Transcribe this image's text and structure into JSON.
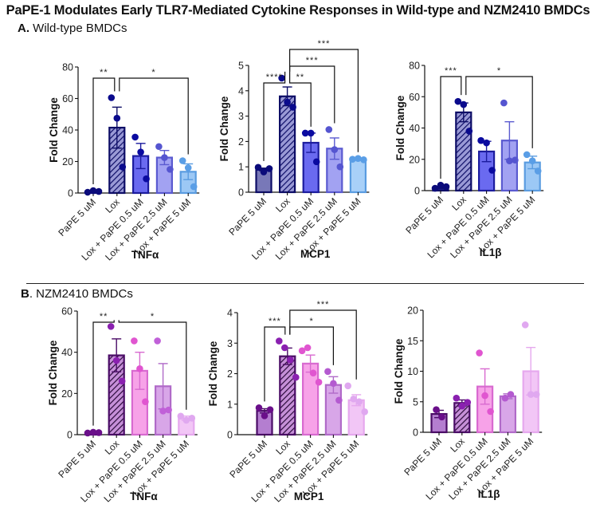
{
  "figure": {
    "title": "PaPE-1 Modulates Early TLR7-Mediated Cytokine Responses in Wild-type and NZM2410 BMDCs",
    "sections": [
      {
        "letter": "A.",
        "name": "Wild-type BMDCs"
      },
      {
        "letter": "B",
        "name": ". NZM2410 BMDCs"
      }
    ]
  },
  "chart_data": [
    {
      "type": "bar",
      "section": "A",
      "title": "TNFα",
      "xlabel": "TNFα",
      "ylabel": "Fold Change",
      "ylim": [
        0,
        80
      ],
      "yticks": [
        0,
        20,
        40,
        60,
        80
      ],
      "categories": [
        "PaPE 5 uM",
        "Lox",
        "Lox + PaPE 0.5 uM",
        "Lox + PaPE 2.5 uM",
        "Lox + PaPE 5 uM"
      ],
      "values": [
        1,
        41.5,
        23.5,
        22.5,
        13.5
      ],
      "sem": [
        0.5,
        13,
        8,
        4.5,
        5
      ],
      "points": [
        [
          0.5,
          1.5,
          1
        ],
        [
          60.5,
          47.5,
          16.5
        ],
        [
          35.5,
          26,
          9
        ],
        [
          29.5,
          22.5,
          15
        ],
        [
          20.5,
          16,
          4
        ]
      ],
      "bar_colors": [
        "#1a1a8c",
        "#9a9ad6",
        "#6a6af0",
        "#a2a2f2",
        "#9cc8f5"
      ],
      "edge_colors": [
        "#0d0d66",
        "#0d0d66",
        "#1c1c9e",
        "#5a5ad0",
        "#5a9ce0"
      ],
      "point_colors": [
        "#0a0a7a",
        "#0a0a8c",
        "#0a0aa0",
        "#5555d0",
        "#5a9ee6"
      ],
      "hatched": [
        false,
        true,
        false,
        false,
        false
      ],
      "significance": [
        {
          "from": 0,
          "to": 1,
          "label": "**",
          "level": 0
        },
        {
          "from": 1,
          "to": 4,
          "label": "*",
          "level": 0
        }
      ]
    },
    {
      "type": "bar",
      "section": "A",
      "title": "MCP1",
      "xlabel": "MCP1",
      "ylabel": "Fold Change",
      "ylim": [
        0,
        5
      ],
      "yticks": [
        0,
        1,
        2,
        3,
        4,
        5
      ],
      "categories": [
        "PaPE 5 uM",
        "Lox",
        "Lox + PaPE 0.5 uM",
        "Lox + PaPE 2.5 uM",
        "Lox + PaPE 5 uM"
      ],
      "values": [
        0.9,
        3.78,
        1.95,
        1.72,
        1.3
      ],
      "sem": [
        0.05,
        0.37,
        0.38,
        0.42,
        0.03
      ],
      "points": [
        [
          0.98,
          0.8,
          0.93
        ],
        [
          4.5,
          3.55,
          3.35
        ],
        [
          2.33,
          2.33,
          1.2
        ],
        [
          2.47,
          1.68,
          1.0
        ],
        [
          1.3,
          1.33,
          1.28
        ]
      ],
      "bar_colors": [
        "#7878b8",
        "#9a9ad6",
        "#6a6af0",
        "#a2a2f2",
        "#a8d0f8"
      ],
      "edge_colors": [
        "#0d0d66",
        "#0d0d66",
        "#1c1c9e",
        "#5a5ad0",
        "#5a9ce0"
      ],
      "point_colors": [
        "#0a0a7a",
        "#0a0a8c",
        "#0a0aa0",
        "#5555d0",
        "#5a9ee6"
      ],
      "hatched": [
        false,
        true,
        false,
        false,
        false
      ],
      "significance": [
        {
          "from": 0,
          "to": 1,
          "label": "****",
          "level": 0
        },
        {
          "from": 1,
          "to": 2,
          "label": "**",
          "level": 0
        },
        {
          "from": 1,
          "to": 3,
          "label": "***",
          "level": 1
        },
        {
          "from": 1,
          "to": 4,
          "label": "***",
          "level": 2
        }
      ]
    },
    {
      "type": "bar",
      "section": "A",
      "title": "IL1β",
      "xlabel": "IL1β",
      "ylabel": "Fold Change",
      "ylim": [
        0,
        80
      ],
      "yticks": [
        0,
        20,
        40,
        60,
        80
      ],
      "categories": [
        "PaPE 5 uM",
        "Lox",
        "Lox + PaPE 0.5 uM",
        "Lox + PaPE 2.5 uM",
        "Lox + PaPE 5 uM"
      ],
      "values": [
        2,
        50,
        25,
        32,
        18
      ],
      "sem": [
        0.5,
        6,
        6.5,
        12,
        4
      ],
      "points": [
        [
          1.5,
          3.5,
          2.5
        ],
        [
          57,
          55,
          38
        ],
        [
          32,
          30.5,
          13
        ],
        [
          56,
          19,
          19.5
        ],
        [
          23,
          19,
          12.5
        ]
      ],
      "bar_colors": [
        "#1a1a8c",
        "#9a9ad6",
        "#6a6af0",
        "#a2a2f2",
        "#9cc8f5"
      ],
      "edge_colors": [
        "#0d0d66",
        "#0d0d66",
        "#1c1c9e",
        "#5a5ad0",
        "#5a9ce0"
      ],
      "point_colors": [
        "#0a0a7a",
        "#0a0a8c",
        "#0a0aa0",
        "#5555d0",
        "#5a9ee6"
      ],
      "hatched": [
        false,
        true,
        false,
        false,
        false
      ],
      "significance": [
        {
          "from": 0,
          "to": 1,
          "label": "***",
          "level": 0
        },
        {
          "from": 1,
          "to": 4,
          "label": "*",
          "level": 0
        }
      ]
    },
    {
      "type": "bar",
      "section": "B",
      "title": "TNFα",
      "xlabel": "TNFα",
      "ylabel": "Fold Change",
      "ylim": [
        0,
        60
      ],
      "yticks": [
        0,
        20,
        40,
        60
      ],
      "categories": [
        "PaPE 5 uM",
        "Lox",
        "Lox + PaPE 0.5 uM",
        "Lox + PaPE 2.5 uM",
        "Lox + PaPE 5 uM"
      ],
      "values": [
        1,
        38.5,
        31,
        23.5,
        8
      ],
      "sem": [
        0.3,
        8,
        9,
        11,
        1
      ],
      "points": [
        [
          0.8,
          1.2,
          1
        ],
        [
          52.5,
          36,
          26
        ],
        [
          45.5,
          32,
          16
        ],
        [
          45.5,
          11.5,
          12
        ],
        [
          9,
          7,
          8
        ]
      ],
      "bar_colors": [
        "#6a1f8a",
        "#c690d8",
        "#f7a2e8",
        "#d8a6e8",
        "#f2c6f6"
      ],
      "edge_colors": [
        "#4a0c66",
        "#4a0c66",
        "#d86ad0",
        "#b06ac8",
        "#e6a8ee"
      ],
      "point_colors": [
        "#6a0f8a",
        "#8a20b0",
        "#e055d0",
        "#c060d8",
        "#e0a8f0"
      ],
      "hatched": [
        false,
        true,
        false,
        false,
        false
      ],
      "significance": [
        {
          "from": 0,
          "to": 1,
          "label": "**",
          "level": 0
        },
        {
          "from": 1,
          "to": 4,
          "label": "*",
          "level": 0
        }
      ]
    },
    {
      "type": "bar",
      "section": "B",
      "title": "MCP1",
      "xlabel": "MCP1",
      "ylabel": "Fold Change",
      "ylim": [
        0,
        4
      ],
      "yticks": [
        0,
        1,
        2,
        3,
        4
      ],
      "categories": [
        "PaPE 5 uM",
        "Lox",
        "Lox + PaPE 0.5 uM",
        "Lox + PaPE 2.5 uM",
        "Lox + PaPE 5 uM"
      ],
      "values": [
        0.78,
        2.57,
        2.33,
        1.63,
        1.13
      ],
      "sem": [
        0.07,
        0.27,
        0.28,
        0.27,
        0.18
      ],
      "points": [
        [
          0.88,
          0.62,
          0.82
        ],
        [
          3.07,
          2.85,
          2.45,
          1.88
        ],
        [
          2.75,
          2.85,
          2.02,
          1.72
        ],
        [
          2.07,
          1.68,
          1.13
        ],
        [
          1.6,
          1.17,
          1.08,
          0.75
        ]
      ],
      "bar_colors": [
        "#b47ed0",
        "#c690d8",
        "#f7a2e8",
        "#d8a6e8",
        "#f2c6f6"
      ],
      "edge_colors": [
        "#4a0c66",
        "#4a0c66",
        "#d86ad0",
        "#b06ac8",
        "#e6a8ee"
      ],
      "point_colors": [
        "#6a0f8a",
        "#8a20b0",
        "#e055d0",
        "#b45ad0",
        "#e0a8f0"
      ],
      "hatched": [
        false,
        true,
        false,
        false,
        false
      ],
      "significance": [
        {
          "from": 0,
          "to": 1,
          "label": "***",
          "level": 0
        },
        {
          "from": 1,
          "to": 3,
          "label": "*",
          "level": 0
        },
        {
          "from": 1,
          "to": 4,
          "label": "***",
          "level": 1
        }
      ]
    },
    {
      "type": "bar",
      "section": "B",
      "title": "IL1β",
      "xlabel": "IL1β",
      "ylabel": "Fold Change",
      "ylim": [
        0,
        20
      ],
      "yticks": [
        0,
        5,
        10,
        15,
        20
      ],
      "categories": [
        "PaPE 5 uM",
        "Lox",
        "Lox + PaPE 0.5 uM",
        "Lox + PaPE 2.5 uM",
        "Lox + PaPE 5 uM"
      ],
      "values": [
        3,
        4.8,
        7.5,
        5.9,
        10
      ],
      "sem": [
        0.6,
        0.5,
        2.9,
        0.4,
        3.9
      ],
      "points": [
        [
          3.7,
          2.5
        ],
        [
          5.6,
          4.3,
          4.9
        ],
        [
          13,
          6,
          3.4
        ],
        [
          5.6,
          6.2
        ],
        [
          17.6,
          6.2,
          6.2
        ]
      ],
      "bar_colors": [
        "#b47ed0",
        "#c690d8",
        "#f7a2e8",
        "#d8a6e8",
        "#f2c6f6"
      ],
      "edge_colors": [
        "#4a0c66",
        "#4a0c66",
        "#d86ad0",
        "#b06ac8",
        "#e6a8ee"
      ],
      "point_colors": [
        "#6a0f8a",
        "#8a20b0",
        "#e055d0",
        "#b45ad0",
        "#e0a8f0"
      ],
      "hatched": [
        false,
        true,
        false,
        false,
        false
      ],
      "significance": []
    }
  ]
}
